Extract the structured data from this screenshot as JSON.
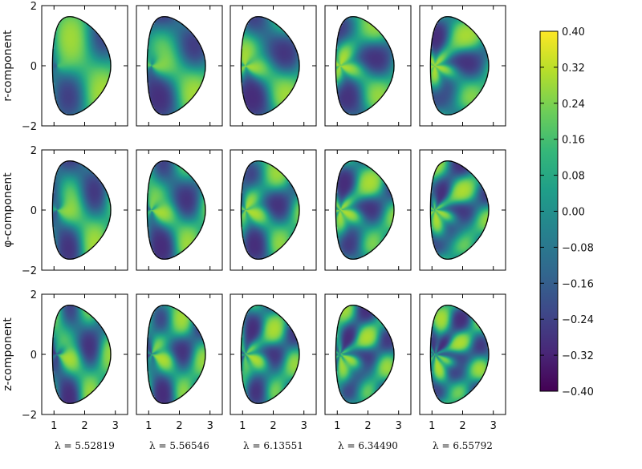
{
  "chart_data": {
    "type": "heatmap",
    "rows": [
      "r-component",
      "φ-component",
      "z-component"
    ],
    "columns": [
      "λ = 5.52819",
      "λ = 5.56546",
      "λ = 6.13551",
      "λ = 6.34490",
      "λ = 6.55792"
    ],
    "x_ticks": [
      "1",
      "2",
      "3"
    ],
    "y_ticks": [
      "−2",
      "0",
      "2"
    ],
    "xlim": [
      0.6,
      3.4
    ],
    "ylim": [
      -2,
      2
    ],
    "colorbar": {
      "min": -0.4,
      "max": 0.4,
      "ticks": [
        "0.40",
        "0.32",
        "0.24",
        "0.16",
        "0.08",
        "0.00",
        "−0.08",
        "−0.16",
        "−0.24",
        "−0.32",
        "−0.40"
      ],
      "colormap": "viridis"
    },
    "colormap_colors": [
      "#440154",
      "#482878",
      "#3e4989",
      "#31688e",
      "#26828e",
      "#1f9e89",
      "#35b779",
      "#6ece58",
      "#b5de2b",
      "#fde725"
    ]
  }
}
